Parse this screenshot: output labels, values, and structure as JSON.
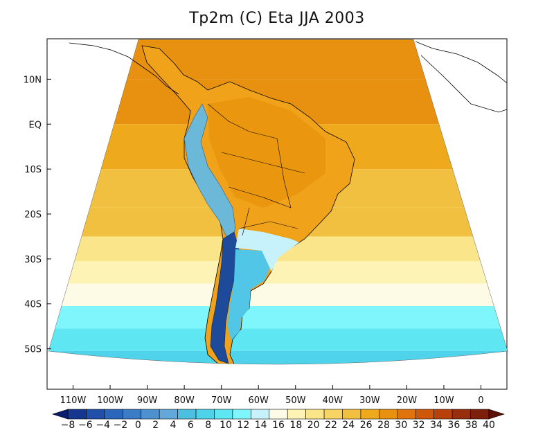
{
  "chart_data": {
    "type": "heatmap",
    "title": "Tp2m (C) Eta JJA 2003",
    "xlabel": "",
    "ylabel": "",
    "x_tick_labels": [
      "110W",
      "100W",
      "90W",
      "80W",
      "70W",
      "60W",
      "50W",
      "40W",
      "30W",
      "20W",
      "10W",
      "0"
    ],
    "x_tick_values": [
      -110,
      -100,
      -90,
      -80,
      -70,
      -60,
      -50,
      -40,
      -30,
      -20,
      -10,
      0
    ],
    "y_tick_labels": [
      "10N",
      "EQ",
      "10S",
      "20S",
      "30S",
      "40S",
      "50S"
    ],
    "y_tick_values": [
      10,
      0,
      -10,
      -20,
      -30,
      -40,
      -50
    ],
    "xlim": [
      -117,
      7
    ],
    "ylim": [
      -59,
      19
    ],
    "grid": false,
    "colorbar": {
      "levels": [
        -8,
        -6,
        -4,
        -2,
        0,
        2,
        4,
        6,
        8,
        10,
        12,
        14,
        16,
        18,
        20,
        22,
        24,
        26,
        28,
        30,
        32,
        34,
        36,
        38,
        40
      ],
      "labels": [
        "−8",
        "−6",
        "−4",
        "−2",
        "0",
        "2",
        "4",
        "6",
        "8",
        "10",
        "12",
        "14",
        "16",
        "18",
        "20",
        "22",
        "24",
        "26",
        "28",
        "30",
        "32",
        "34",
        "36",
        "38",
        "40"
      ],
      "colors": [
        "#0a1e6e",
        "#16378f",
        "#1f4fa8",
        "#2a66ba",
        "#3a7cc6",
        "#4e91d0",
        "#62a8da",
        "#4dbfe0",
        "#4fd3ea",
        "#5ee6f2",
        "#7ff6fb",
        "#c8f2fb",
        "#fdfbe6",
        "#fdf3b5",
        "#fbe58a",
        "#f7d463",
        "#f2c040",
        "#eeaa1c",
        "#e8900f",
        "#e0730d",
        "#cf5709",
        "#b8410a",
        "#982f0c",
        "#7c1f0b",
        "#5c1007"
      ],
      "placement": "bottom",
      "extend": "both"
    },
    "description_bands": [
      {
        "lat": 15,
        "value": 26
      },
      {
        "lat": 5,
        "value": 26
      },
      {
        "lat": -5,
        "value": 25
      },
      {
        "lat": -15,
        "value": 23
      },
      {
        "lat": -22,
        "value": 22
      },
      {
        "lat": -28,
        "value": 19
      },
      {
        "lat": -33,
        "value": 17
      },
      {
        "lat": -38,
        "value": 14
      },
      {
        "lat": -43,
        "value": 11
      },
      {
        "lat": -48,
        "value": 8
      },
      {
        "lat": -53,
        "value": 6
      },
      {
        "lat": -57,
        "value": 5
      }
    ]
  }
}
